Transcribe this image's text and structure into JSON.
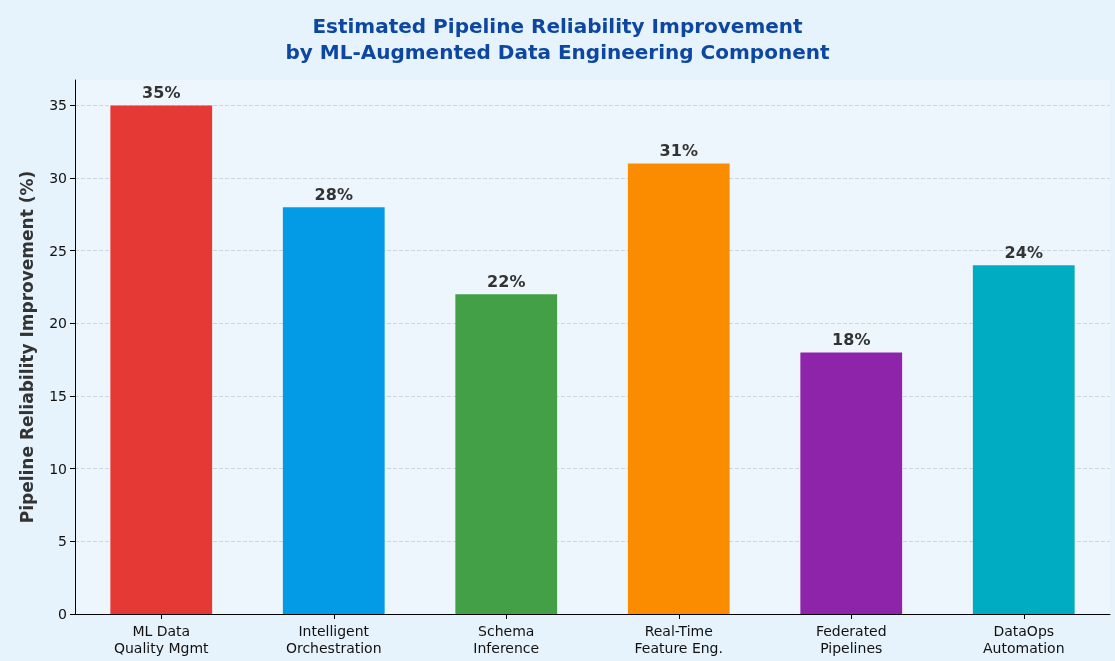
{
  "chart_data": {
    "type": "bar",
    "title": "Estimated Pipeline Reliability Improvement\nby ML-Augmented Data Engineering Component",
    "ylabel": "Pipeline Reliability Improvement (%)",
    "categories": [
      "ML Data\nQuality Mgmt",
      "Intelligent\nOrchestration",
      "Schema\nInference",
      "Real-Time\nFeature Eng.",
      "Federated\nPipelines",
      "DataOps\nAutomation"
    ],
    "values": [
      35,
      28,
      22,
      31,
      18,
      24
    ],
    "colors": [
      "#e53935",
      "#039be5",
      "#43a047",
      "#fb8c00",
      "#8e24aa",
      "#00acc1"
    ],
    "value_labels": [
      "35%",
      "28%",
      "22%",
      "31%",
      "18%",
      "24%"
    ],
    "ylim": [
      0,
      36.75
    ],
    "yticks": [
      0,
      5,
      10,
      15,
      20,
      25,
      30,
      35
    ],
    "grid": "y"
  }
}
